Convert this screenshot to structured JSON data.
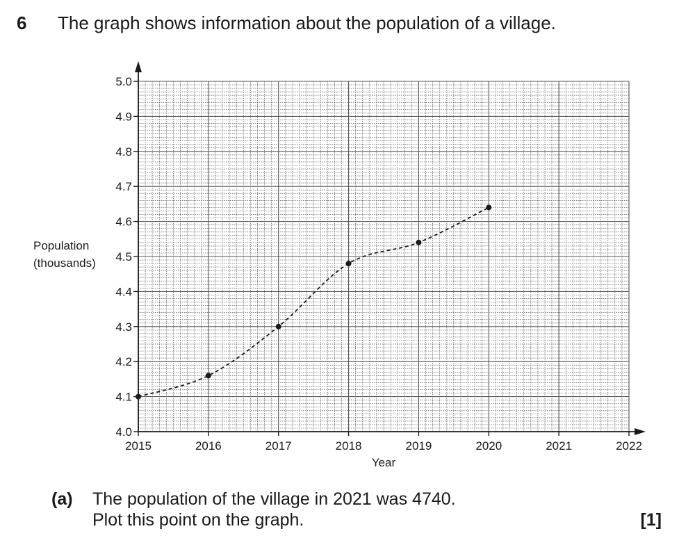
{
  "question": {
    "number": "6",
    "text": "The graph shows information about the population of a village."
  },
  "chart_data": {
    "type": "line",
    "title": "",
    "xlabel": "Year",
    "ylabel": [
      "Population",
      "(thousands)"
    ],
    "xlim": [
      2015,
      2022
    ],
    "ylim": [
      4.0,
      5.0
    ],
    "x_ticks": [
      "2015",
      "2016",
      "2017",
      "2018",
      "2019",
      "2020",
      "2021",
      "2022"
    ],
    "y_ticks": [
      "4.0",
      "4.1",
      "4.2",
      "4.3",
      "4.4",
      "4.5",
      "4.6",
      "4.7",
      "4.8",
      "4.9",
      "5.0"
    ],
    "grid": true,
    "line_style": "dashed",
    "series": [
      {
        "name": "Population",
        "x": [
          2015,
          2016,
          2017,
          2018,
          2019,
          2020
        ],
        "y": [
          4.1,
          4.16,
          4.3,
          4.48,
          4.54,
          4.64
        ]
      }
    ]
  },
  "part_a": {
    "label": "(a)",
    "line1": "The population of the village in 2021 was 4740.",
    "line2": "Plot this point on the graph.",
    "marks": "[1]"
  },
  "colors": {
    "ink": "#1a1a1a",
    "grid": "#555555"
  }
}
